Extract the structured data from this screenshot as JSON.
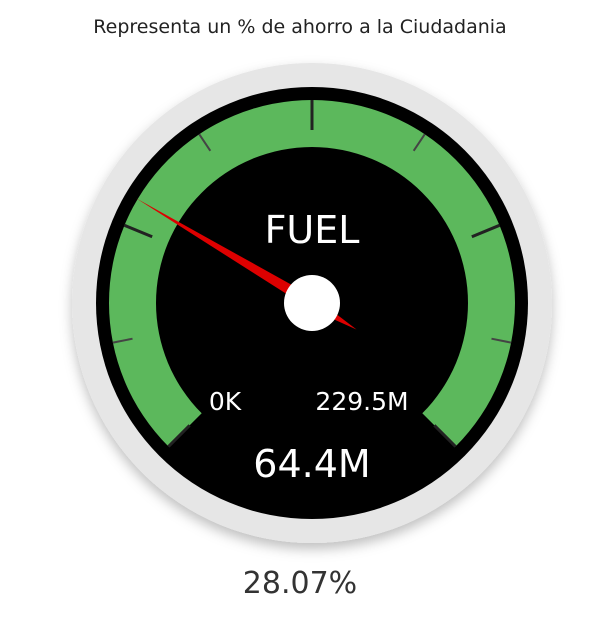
{
  "title": "Representa un % de ahorro a la Ciudadania",
  "chart_data": {
    "type": "gauge",
    "label": "FUEL",
    "value": 64.4,
    "value_label": "64.4M",
    "min": 0,
    "min_label": "0K",
    "max": 229.5,
    "max_label": "229.5M",
    "unit": "M",
    "percent_label": "28.07%",
    "colors": {
      "band": "#5cb85c",
      "face": "#000000",
      "bezel": "#e6e6e6",
      "needle": "#dd0000",
      "hub": "#ffffff"
    }
  }
}
